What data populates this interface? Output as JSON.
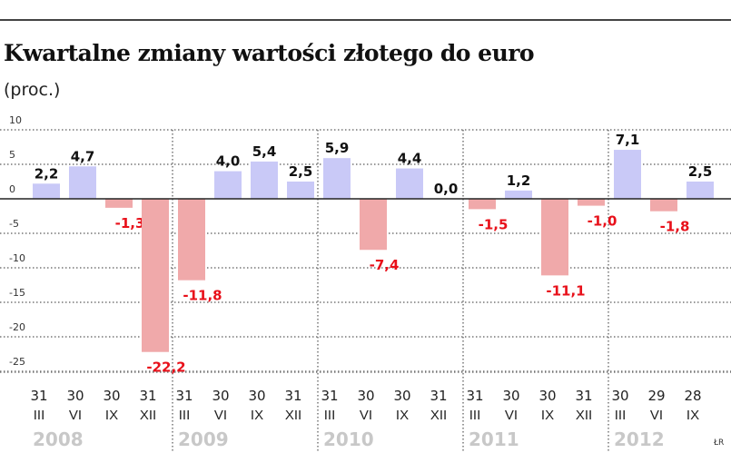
{
  "chart_data": {
    "type": "bar",
    "title": "Kwartalne zmiany wartości złotego do euro",
    "subtitle": "(proc.)",
    "ylim": [
      -25,
      10
    ],
    "yticks": [
      10,
      5,
      0,
      -5,
      -10,
      -15,
      -20,
      -25
    ],
    "ytick_labels": [
      "10",
      "5",
      "0",
      "-5",
      "-10",
      "-15",
      "-20",
      "-25"
    ],
    "grid": true,
    "categories": [
      {
        "day": "31",
        "month": "III"
      },
      {
        "day": "30",
        "month": "VI"
      },
      {
        "day": "30",
        "month": "IX"
      },
      {
        "day": "31",
        "month": "XII"
      },
      {
        "day": "31",
        "month": "III"
      },
      {
        "day": "30",
        "month": "VI"
      },
      {
        "day": "30",
        "month": "IX"
      },
      {
        "day": "31",
        "month": "XII"
      },
      {
        "day": "31",
        "month": "III"
      },
      {
        "day": "30",
        "month": "VI"
      },
      {
        "day": "30",
        "month": "IX"
      },
      {
        "day": "31",
        "month": "XII"
      },
      {
        "day": "31",
        "month": "III"
      },
      {
        "day": "30",
        "month": "VI"
      },
      {
        "day": "30",
        "month": "IX"
      },
      {
        "day": "31",
        "month": "XII"
      },
      {
        "day": "30",
        "month": "III"
      },
      {
        "day": "29",
        "month": "VI"
      },
      {
        "day": "28",
        "month": "IX"
      }
    ],
    "years": [
      "2008",
      "2009",
      "2010",
      "2011",
      "2012"
    ],
    "values": [
      2.2,
      4.7,
      -1.3,
      -22.2,
      -11.8,
      4.0,
      5.4,
      2.5,
      5.9,
      -7.4,
      4.4,
      0.0,
      -1.5,
      1.2,
      -11.1,
      -1.0,
      7.1,
      -1.8,
      2.5
    ],
    "value_labels": [
      "2,2",
      "4,7",
      "-1,3",
      "-22,2",
      "-11,8",
      "4,0",
      "5,4",
      "2,5",
      "5,9",
      "-7,4",
      "4,4",
      "0,0",
      "-1,5",
      "1,2",
      "-11,1",
      "-1,0",
      "7,1",
      "-1,8",
      "2,5"
    ],
    "colors": {
      "positive": "#c9c9f7",
      "negative": "#f0a9aa",
      "negative_label": "#e8101a",
      "positive_label": "#111111",
      "year": "#c8c8c8"
    }
  },
  "credit": "ŁR"
}
